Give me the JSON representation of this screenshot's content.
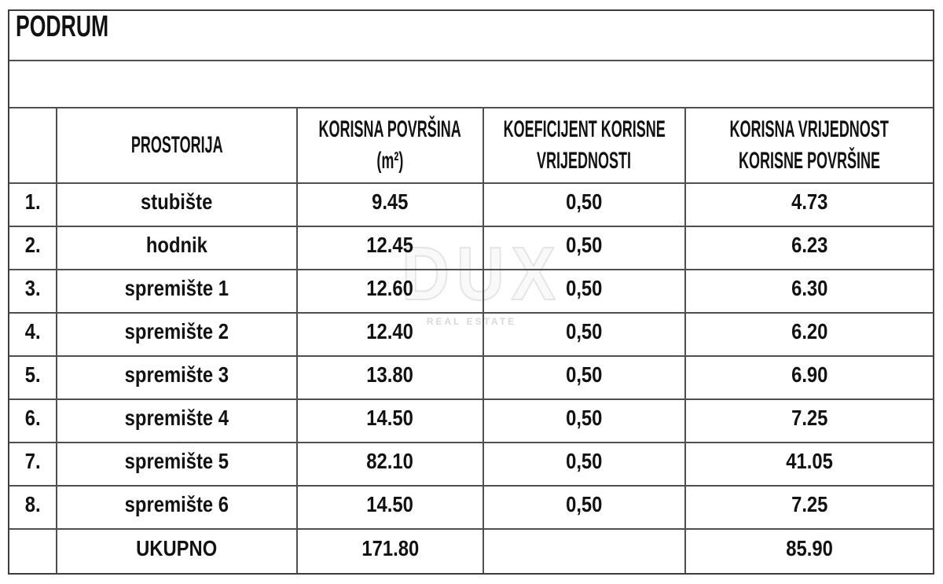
{
  "page": {
    "title": "PODRUM"
  },
  "watermark": {
    "brand": "DUX",
    "tagline": "REAL ESTATE"
  },
  "table": {
    "headers": {
      "num": "",
      "room": "PROSTORIJA",
      "area_line1": "KORISNA POVRŠINA",
      "area_line2": "(m²)",
      "coef_line1": "KOEFICIJENT KORISNE",
      "coef_line2": "VRIJEDNOSTI",
      "value_line1": "KORISNA VRIJEDNOST",
      "value_line2": "KORISNE POVRŠINE"
    },
    "rows": [
      {
        "num": "1.",
        "room": "stubište",
        "area": "9.45",
        "coef": "0,50",
        "value": "4.73"
      },
      {
        "num": "2.",
        "room": "hodnik",
        "area": "12.45",
        "coef": "0,50",
        "value": "6.23"
      },
      {
        "num": "3.",
        "room": "spremište 1",
        "area": "12.60",
        "coef": "0,50",
        "value": "6.30"
      },
      {
        "num": "4.",
        "room": "spremište 2",
        "area": "12.40",
        "coef": "0,50",
        "value": "6.20"
      },
      {
        "num": "5.",
        "room": "spremište 3",
        "area": "13.80",
        "coef": "0,50",
        "value": "6.90"
      },
      {
        "num": "6.",
        "room": "spremište 4",
        "area": "14.50",
        "coef": "0,50",
        "value": "7.25"
      },
      {
        "num": "7.",
        "room": "spremište 5",
        "area": "82.10",
        "coef": "0,50",
        "value": "41.05"
      },
      {
        "num": "8.",
        "room": "spremište 6",
        "area": "14.50",
        "coef": "0,50",
        "value": "7.25"
      }
    ],
    "total": {
      "num": "",
      "label": "UKUPNO",
      "area": "171.80",
      "coef": "",
      "value": "85.90"
    }
  },
  "colors": {
    "border_outer": "#3d3d3d",
    "border_inner": "#4f4f4f",
    "text": "#121212",
    "watermark": "#e4e4e4"
  }
}
